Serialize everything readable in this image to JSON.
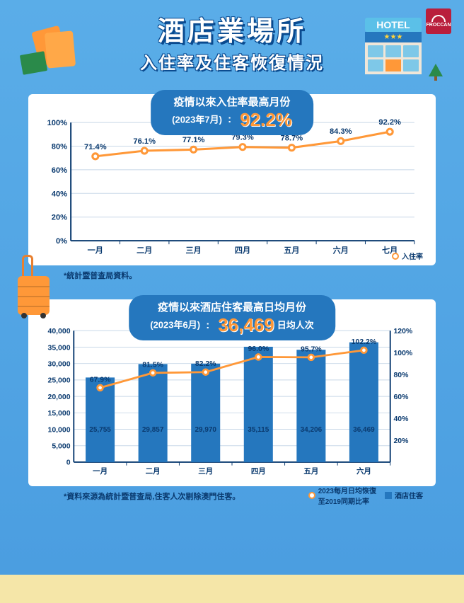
{
  "header": {
    "title": "酒店業場所",
    "subtitle": "入住率及住客恢復情況",
    "hotel_sign": "HOTEL",
    "hotel_stars": "★★★",
    "logo_text": "FROCCAN"
  },
  "chart1": {
    "type": "line",
    "headline_prefix": "疫情以來入住率最高月份",
    "headline_sub": "(2023年7月)",
    "big_value": "92.2%",
    "note": "*統計暨普查局資料。",
    "legend_label": "入住率",
    "ylabel_suffix": "%",
    "ylim": [
      0,
      100
    ],
    "ytick_step": 20,
    "categories": [
      "一月",
      "二月",
      "三月",
      "四月",
      "五月",
      "六月",
      "七月"
    ],
    "values": [
      71.4,
      76.1,
      77.1,
      79.3,
      78.7,
      84.3,
      92.2
    ],
    "point_labels": [
      "71.4%",
      "76.1%",
      "77.1%",
      "79.3%",
      "78.7%",
      "84.3%",
      "92.2%"
    ],
    "line_color": "#ff9838",
    "marker_fill": "#ffffff",
    "grid_color": "#c8d8e8",
    "axis_color": "#0a3a6f",
    "background_color": "#ffffff",
    "label_fontsize": 11,
    "line_width": 3
  },
  "chart2": {
    "type": "bar+line",
    "headline_prefix": "疫情以來酒店住客最高日均月份",
    "headline_sub": "(2023年6月)",
    "big_value": "36,469",
    "big_suffix": "日均人次",
    "note": "*資料來源為統計暨普查局,住客人次剔除澳門住客。",
    "legend_line_label": "2023每月日均恢復\n至2019同期比率",
    "legend_bar_label": "酒店住客",
    "categories": [
      "一月",
      "二月",
      "三月",
      "四月",
      "五月",
      "六月"
    ],
    "bar_values": [
      25755,
      29857,
      29970,
      35115,
      34206,
      36469
    ],
    "bar_labels": [
      "25,755",
      "29,857",
      "29,970",
      "35,115",
      "34,206",
      "36,469"
    ],
    "line_values": [
      67.9,
      81.5,
      82.2,
      96.0,
      95.7,
      102.2
    ],
    "line_labels": [
      "67.9%",
      "81.5%",
      "82.2%",
      "96.0%",
      "95.7%",
      "102.2%"
    ],
    "y1_lim": [
      0,
      40000
    ],
    "y1_tick_step": 5000,
    "y1_tick_labels": [
      "0",
      "5,000",
      "10,000",
      "15,000",
      "20,000",
      "25,000",
      "30,000",
      "35,000",
      "40,000"
    ],
    "y2_lim": [
      0,
      120
    ],
    "y2_tick_step": 20,
    "y2_tick_labels": [
      "20%",
      "40%",
      "60%",
      "80%",
      "100%",
      "120%"
    ],
    "bar_color": "#2577be",
    "line_color": "#ff9838",
    "bar_width": 0.55,
    "grid_color": "#c8d8e8",
    "axis_color": "#0a3a6f",
    "background_color": "#ffffff"
  }
}
